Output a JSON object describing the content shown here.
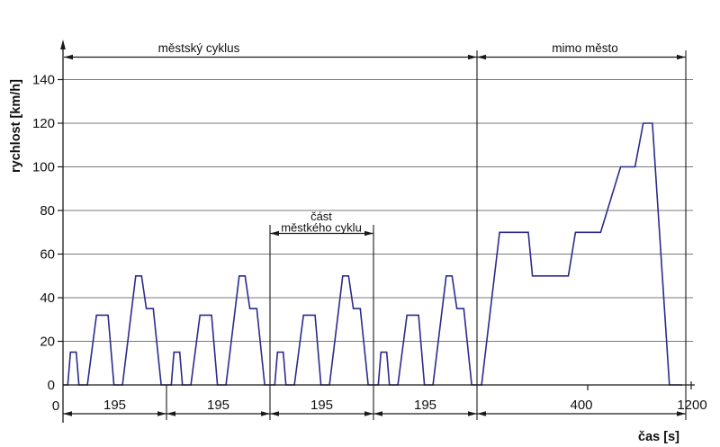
{
  "figure": {
    "background": "#ffffff",
    "axis_color": "#1a1a1a",
    "grid_color": "#7a7a7a",
    "curve_color": "#2b2b8c"
  },
  "chart_data": {
    "type": "line",
    "title": "",
    "xlabel": "čas [s]",
    "ylabel": "rychlost [km/h]",
    "x_range": [
      0,
      1200
    ],
    "y_range": [
      0,
      150
    ],
    "y_ticks": [
      0,
      20,
      40,
      60,
      80,
      100,
      120,
      140
    ],
    "grid": "horizontal",
    "legend": "none",
    "x_origin_label": "0",
    "x_end_label": "1200",
    "x_axis_minor_tick_times": [
      1000,
      1200
    ],
    "urban_cycle": {
      "label": "městský cyklus",
      "repeats": 4,
      "segment_duration_s": 195,
      "segment_profile_t_v": [
        [
          0,
          0
        ],
        [
          9,
          0
        ],
        [
          14,
          15
        ],
        [
          25,
          15
        ],
        [
          30,
          0
        ],
        [
          46,
          0
        ],
        [
          63,
          32
        ],
        [
          85,
          32
        ],
        [
          96,
          0
        ],
        [
          112,
          0
        ],
        [
          137,
          50
        ],
        [
          148,
          50
        ],
        [
          157,
          35
        ],
        [
          170,
          35
        ],
        [
          185,
          0
        ],
        [
          195,
          0
        ]
      ]
    },
    "extra_urban": {
      "label": "mimo město",
      "duration_s": 400,
      "profile_t_v": [
        [
          789,
          0
        ],
        [
          824,
          70
        ],
        [
          880,
          70
        ],
        [
          888,
          50
        ],
        [
          958,
          50
        ],
        [
          972,
          70
        ],
        [
          1021,
          70
        ],
        [
          1060,
          100
        ],
        [
          1088,
          100
        ],
        [
          1104,
          120
        ],
        [
          1122,
          120
        ],
        [
          1155,
          0
        ],
        [
          1180,
          0
        ]
      ]
    },
    "part_annotation": {
      "line1": "část",
      "line2": "městkého cyklu"
    },
    "segment_dimension_labels": [
      "195",
      "195",
      "195",
      "195",
      "400"
    ]
  }
}
